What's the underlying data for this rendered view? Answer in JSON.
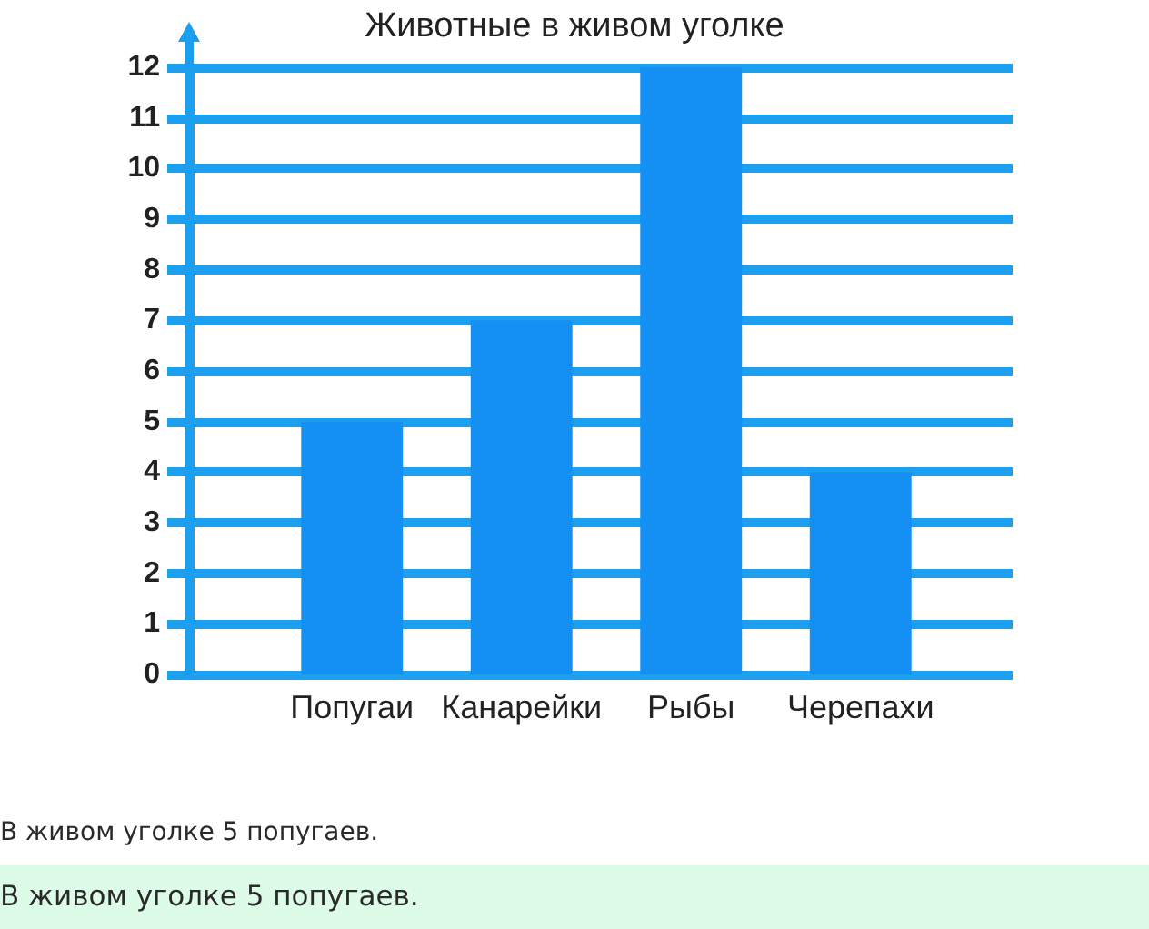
{
  "chart_data": {
    "type": "bar",
    "title": "Животные в живом уголке",
    "categories": [
      "Попугаи",
      "Канарейки",
      "Рыбы",
      "Черепахи"
    ],
    "values": [
      5,
      7,
      12,
      4
    ],
    "color": "#1490f4",
    "ylim": [
      0,
      12
    ],
    "yticks": [
      0,
      1,
      2,
      3,
      4,
      5,
      6,
      7,
      8,
      9,
      10,
      11,
      12
    ],
    "grid": "y",
    "annotations": [
      "В живом уголке 5 попугаев.",
      "В живом уголке 5 попугаев."
    ]
  }
}
